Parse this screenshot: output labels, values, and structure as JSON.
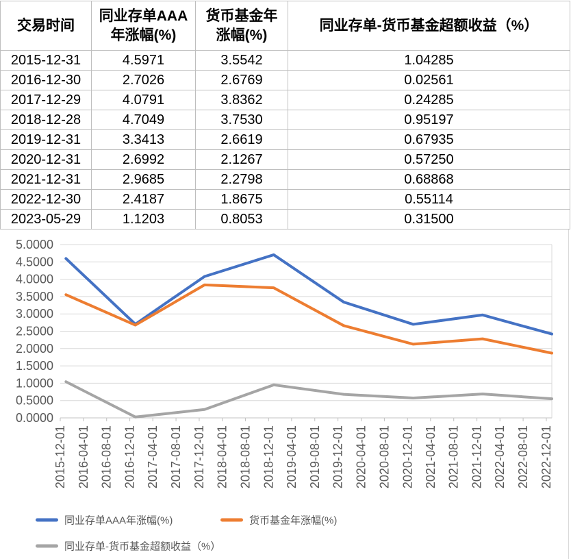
{
  "table": {
    "headers": [
      "交易时间",
      "同业存单AAA年涨幅(%)",
      "货币基金年涨幅(%)",
      "同业存单-货币基金超额收益（%）"
    ],
    "rows": [
      [
        "2015-12-31",
        "4.5971",
        "3.5542",
        "1.04285"
      ],
      [
        "2016-12-30",
        "2.7026",
        "2.6769",
        "0.02561"
      ],
      [
        "2017-12-29",
        "4.0791",
        "3.8362",
        "0.24285"
      ],
      [
        "2018-12-28",
        "4.7049",
        "3.7530",
        "0.95197"
      ],
      [
        "2019-12-31",
        "3.3413",
        "2.6619",
        "0.67935"
      ],
      [
        "2020-12-31",
        "2.6992",
        "2.1267",
        "0.57250"
      ],
      [
        "2021-12-31",
        "2.9685",
        "2.2798",
        "0.68868"
      ],
      [
        "2022-12-30",
        "2.4187",
        "1.8675",
        "0.55114"
      ],
      [
        "2023-05-29",
        "1.1203",
        "0.8053",
        "0.31500"
      ]
    ]
  },
  "chart_data": {
    "type": "line",
    "grid": "horizontal",
    "legend_position": "bottom-left",
    "y_axis": {
      "min": 0,
      "max": 5,
      "tick_step": 0.5,
      "decimals": 4
    },
    "x_axis": {
      "min": "2015-12-01",
      "max": "2022-12-30",
      "tick_labels": [
        "2015-12-01",
        "2016-04-01",
        "2016-08-01",
        "2016-12-01",
        "2017-04-01",
        "2017-08-01",
        "2017-12-01",
        "2018-04-01",
        "2018-08-01",
        "2018-12-01",
        "2019-04-01",
        "2019-08-01",
        "2019-12-01",
        "2020-04-01",
        "2020-08-01",
        "2020-12-01",
        "2021-04-01",
        "2021-08-01",
        "2021-12-01",
        "2022-04-01",
        "2022-08-01",
        "2022-12-01"
      ]
    },
    "points_x_dates": [
      "2015-12-31",
      "2016-12-30",
      "2017-12-29",
      "2018-12-28",
      "2019-12-31",
      "2020-12-31",
      "2021-12-31",
      "2022-12-30"
    ],
    "series": [
      {
        "name": "同业存单AAA年涨幅(%)",
        "color": "#4472C4",
        "values": [
          4.5971,
          2.7026,
          4.0791,
          4.7049,
          3.3413,
          2.6992,
          2.9685,
          2.4187
        ]
      },
      {
        "name": "货币基金年涨幅(%)",
        "color": "#ED7D31",
        "values": [
          3.5542,
          2.6769,
          3.8362,
          3.753,
          2.6619,
          2.1267,
          2.2798,
          1.8675
        ]
      },
      {
        "name": "同业存单-货币基金超额收益（%）",
        "color": "#A5A5A5",
        "values": [
          1.04285,
          0.02561,
          0.24285,
          0.95197,
          0.67935,
          0.5725,
          0.68868,
          0.55114
        ]
      }
    ]
  }
}
